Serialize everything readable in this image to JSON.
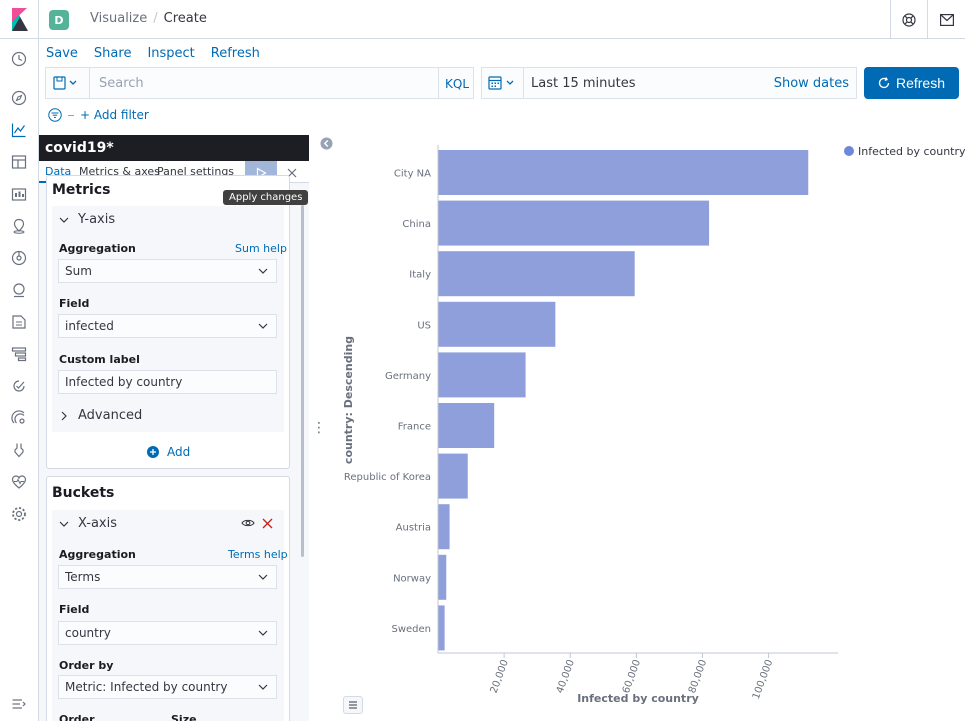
{
  "header": {
    "space_initial": "D",
    "breadcrumbs": [
      "Visualize",
      "Create"
    ]
  },
  "top_menu": [
    "Save",
    "Share",
    "Inspect",
    "Refresh"
  ],
  "query_bar": {
    "search_placeholder": "Search",
    "language": "KQL",
    "date_range": "Last 15 minutes",
    "show_dates": "Show dates",
    "refresh_label": "Refresh"
  },
  "filter": {
    "add_filter": "+ Add filter"
  },
  "sidebar": {
    "title": "covid19*",
    "tabs": [
      "Data",
      "Metrics & axes",
      "Panel settings"
    ],
    "apply_tooltip": "Apply changes",
    "metrics": {
      "title": "Metrics",
      "axis": "Y-axis",
      "aggregation_label": "Aggregation",
      "aggregation_help": "Sum help",
      "aggregation_value": "Sum",
      "field_label": "Field",
      "field_value": "infected",
      "custom_label_label": "Custom label",
      "custom_label_value": "Infected by country",
      "advanced": "Advanced",
      "add": "Add"
    },
    "buckets": {
      "title": "Buckets",
      "axis": "X-axis",
      "aggregation_label": "Aggregation",
      "aggregation_help": "Terms help",
      "aggregation_value": "Terms",
      "field_label": "Field",
      "field_value": "country",
      "order_by_label": "Order by",
      "order_by_value": "Metric: Infected by country",
      "order_label": "Order",
      "size_label": "Size"
    }
  },
  "colors": {
    "accent": "#006bb4",
    "bar": "#8f9fdc",
    "legend_dot": "#6f87d8"
  },
  "chart_data": {
    "type": "bar",
    "orientation": "horizontal",
    "categories": [
      "City NA",
      "China",
      "Italy",
      "US",
      "Germany",
      "France",
      "Republic of Korea",
      "Austria",
      "Norway",
      "Sweden"
    ],
    "values": [
      112000,
      82000,
      59500,
      35500,
      26500,
      17000,
      9000,
      3500,
      2500,
      2000
    ],
    "xlabel": "Infected by country",
    "ylabel": "country: Descending",
    "xticks": [
      "20,000",
      "40,000",
      "60,000",
      "80,000",
      "100,000"
    ],
    "tick_values": [
      20000,
      40000,
      60000,
      80000,
      100000
    ],
    "xlim": [
      0,
      121000
    ],
    "legend": {
      "entries": [
        "Infected by country"
      ],
      "position": "top-right"
    }
  }
}
